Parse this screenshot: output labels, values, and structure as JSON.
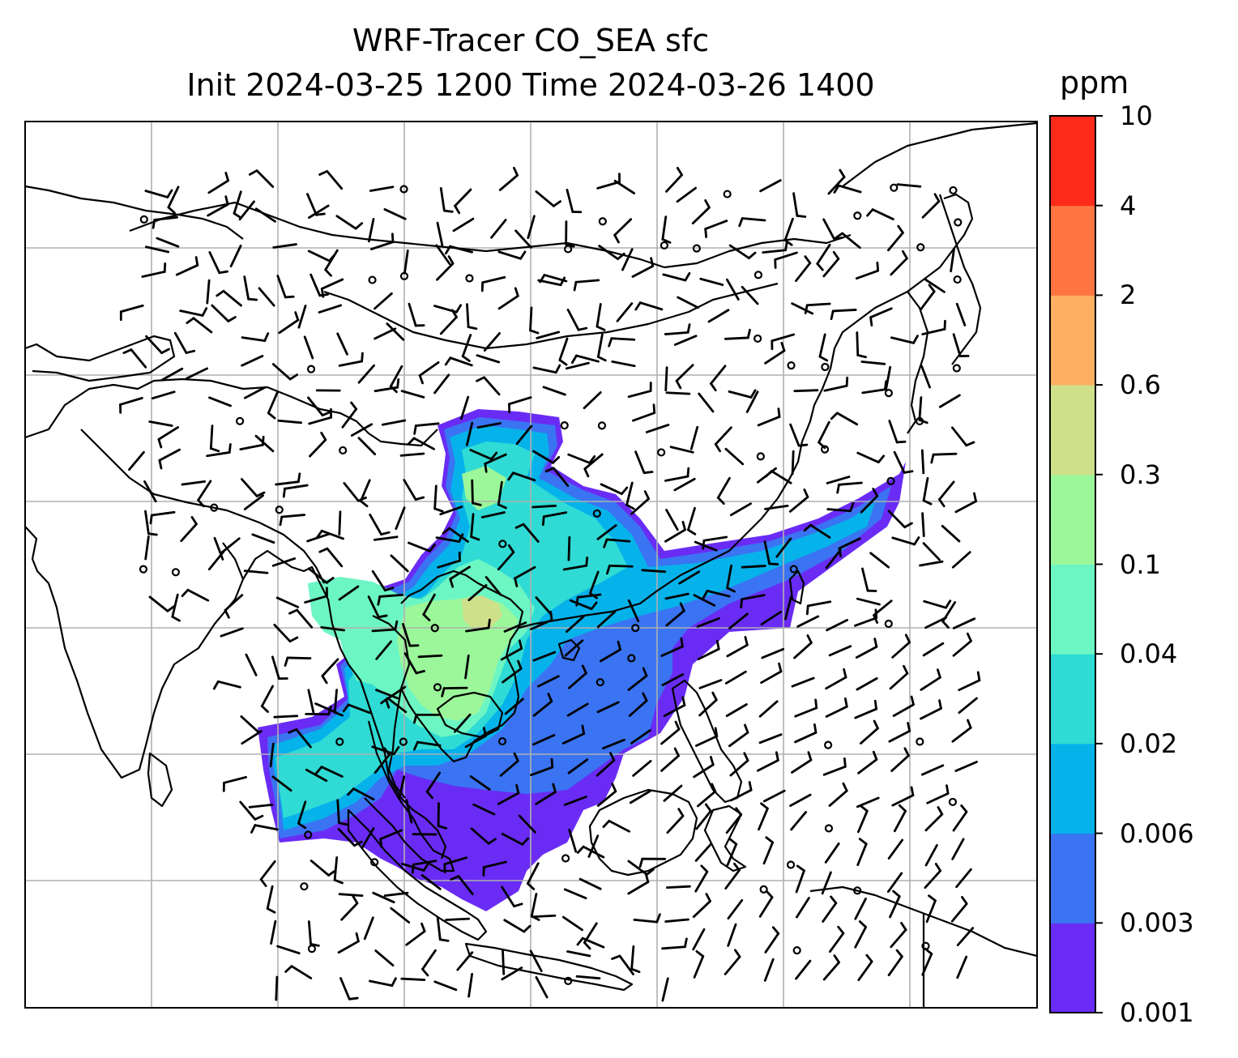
{
  "title": {
    "line1": "WRF-Tracer CO_SEA sfc",
    "line2": "Init 2024-03-25 1200 Time 2024-03-26 1400"
  },
  "colorbar": {
    "unit": "ppm",
    "levels": [
      "0.001",
      "0.003",
      "0.006",
      "0.02",
      "0.04",
      "0.1",
      "0.3",
      "0.6",
      "2",
      "4",
      "10"
    ],
    "colors": [
      "#6a2cf5",
      "#3a74f2",
      "#06b2ea",
      "#2fdbd4",
      "#6cf6c4",
      "#9cf79a",
      "#cfe08a",
      "#fdb062",
      "#ff7542",
      "#ff2b1a"
    ]
  },
  "map": {
    "plume_colors": {
      "low": "#6a2cf5",
      "mid": "#3a74f2",
      "cyan": "#06b2ea",
      "teal": "#2fdbd4",
      "mint": "#6cf6c4",
      "green": "#9cf79a",
      "yellow": "#cfe08a"
    },
    "gridline_color": "#b0b0b0",
    "coastline_color": "#000000",
    "wind_barb_color": "#000000"
  }
}
